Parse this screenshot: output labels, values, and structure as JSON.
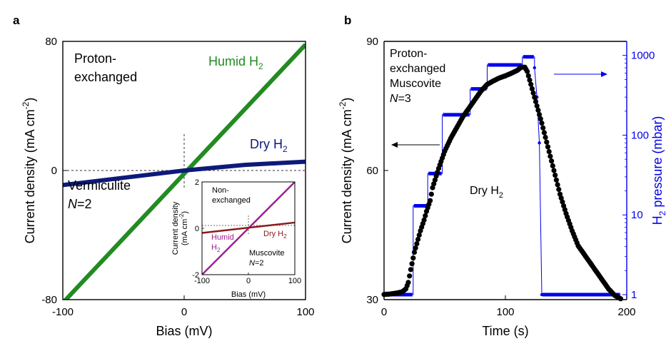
{
  "chart_data": [
    {
      "panel": "a",
      "type": "line",
      "xlabel": "Bias (mV)",
      "ylabel": "Current density (mA cm",
      "ylabel_sup": "-2",
      "ylabel_tail": ")",
      "xlim": [
        -100,
        100
      ],
      "ylim": [
        -80,
        80
      ],
      "xticks": [
        "-100",
        "0",
        "100"
      ],
      "yticks": [
        "-80",
        "0",
        "80"
      ],
      "annotations": {
        "proton_1": "Proton-",
        "proton_2": "exchanged",
        "vermiculite": "Vermiculite",
        "n_label": "N",
        "n_value": "=2"
      },
      "series": [
        {
          "name": "Humid H",
          "sub": "2",
          "color": "#228b22",
          "x": [
            -100,
            100
          ],
          "y": [
            -82,
            78
          ]
        },
        {
          "name": "Dry H",
          "sub": "2",
          "color": "#0d1a7a",
          "x": [
            -100,
            -50,
            0,
            50,
            100
          ],
          "y": [
            -9,
            -4.5,
            0,
            3.5,
            5.5
          ]
        }
      ],
      "inset": {
        "title_1": "Non-",
        "title_2": "exchanged",
        "xlabel": "Bias (mV)",
        "ylabel_1": "Current density",
        "ylabel_2": "(mA cm",
        "ylabel_sup": "-2",
        "ylabel_tail": ")",
        "xlim": [
          -100,
          100
        ],
        "ylim": [
          -2,
          2
        ],
        "xticks": [
          "-100",
          "0",
          "100"
        ],
        "yticks": [
          "-2",
          "0",
          "2"
        ],
        "muscovite": "Muscovite",
        "n_label": "N",
        "n_value": "=2",
        "humid_1": "Humid",
        "humid_2": "H",
        "humid_sub": "2",
        "dry": "Dry H",
        "dry_sub": "2",
        "series": [
          {
            "name": "Humid",
            "color": "#9b1f8f",
            "x": [
              -100,
              100
            ],
            "y": [
              -2,
              2
            ]
          },
          {
            "name": "Dry",
            "color": "#8b1a1a",
            "x": [
              -100,
              100
            ],
            "y": [
              -0.2,
              0.25
            ]
          }
        ]
      }
    },
    {
      "panel": "b",
      "type": "scatter",
      "xlabel": "Time (s)",
      "ylabel": "Current density (mA cm",
      "ylabel_sup": "-2",
      "ylabel_tail": ")",
      "y2label_pre": "H",
      "y2label_sub": "2",
      "y2label_post": " pressure (mbar)",
      "y2_scale": "log",
      "xlim": [
        0,
        200
      ],
      "ylim": [
        30,
        90
      ],
      "y2lim": [
        1,
        1500
      ],
      "xticks": [
        "0",
        "100",
        "200"
      ],
      "yticks": [
        "30",
        "60",
        "90"
      ],
      "y2ticks": [
        "1",
        "10",
        "100",
        "1000"
      ],
      "annotations": {
        "line1": "Proton-",
        "line2": "exchanged",
        "line3": "Muscovite",
        "n_label": "N",
        "n_value": "=3",
        "dry": "Dry H",
        "dry_sub": "2"
      },
      "current": {
        "color": "#000000",
        "x": [
          0,
          5,
          10,
          15,
          18,
          20,
          22,
          25,
          28,
          30,
          33,
          35,
          38,
          40,
          45,
          50,
          55,
          60,
          65,
          70,
          75,
          80,
          85,
          90,
          95,
          100,
          105,
          110,
          113,
          116,
          118,
          120,
          122,
          125,
          128,
          130,
          135,
          140,
          145,
          150,
          155,
          160,
          165,
          170,
          175,
          180,
          185,
          190,
          195
        ],
        "y": [
          31.2,
          31.3,
          31.5,
          31.8,
          32.5,
          34,
          37,
          41,
          44,
          46,
          48.5,
          50.5,
          53,
          56,
          60.5,
          64.5,
          67.5,
          70,
          72.5,
          74.5,
          76.5,
          78.5,
          80,
          80.8,
          81.5,
          82,
          82.6,
          83.3,
          84,
          84,
          83,
          81,
          79,
          76,
          73,
          71,
          65.5,
          60,
          54.5,
          50,
          46,
          42.5,
          40.5,
          38.5,
          36.5,
          34.5,
          32.5,
          31,
          30.2
        ]
      },
      "pressure": {
        "color": "#0000ee",
        "segments": [
          {
            "x": [
              0,
              24
            ],
            "p": 1
          },
          {
            "x": [
              24,
              36
            ],
            "p": 13
          },
          {
            "x": [
              36,
              48
            ],
            "p": 33
          },
          {
            "x": [
              48,
              71
            ],
            "p": 180
          },
          {
            "x": [
              71,
              85
            ],
            "p": 380
          },
          {
            "x": [
              85,
              114
            ],
            "p": 760
          },
          {
            "x": [
              114,
              124
            ],
            "p": 960
          },
          {
            "x": [
              130,
              195
            ],
            "p": 1
          }
        ],
        "decay": {
          "x": [
            124,
            126,
            128,
            130
          ],
          "p": [
            700,
            300,
            80,
            1
          ]
        }
      }
    }
  ]
}
